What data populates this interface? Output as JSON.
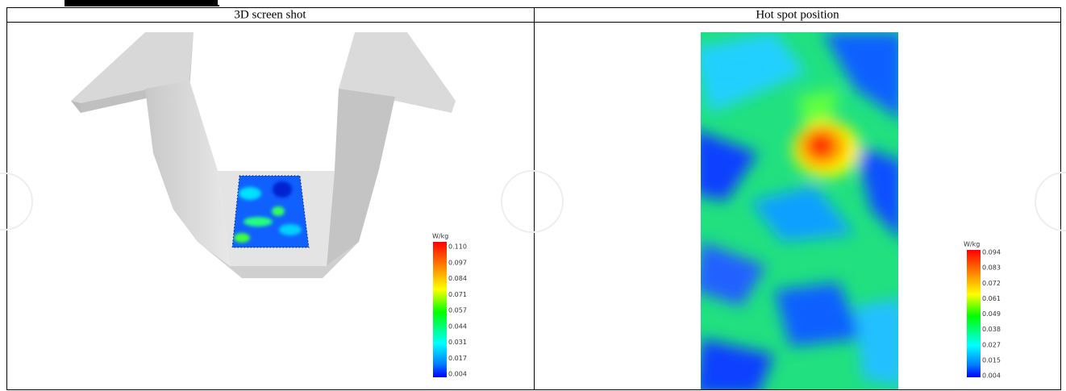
{
  "table": {
    "headers": [
      "3D screen shot",
      "Hot spot position"
    ]
  },
  "colorbars": [
    {
      "unit": "W/kg",
      "labels": [
        "0.110",
        "0.097",
        "0.084",
        "0.071",
        "0.057",
        "0.044",
        "0.031",
        "0.017",
        "0.004"
      ]
    },
    {
      "unit": "W/kg",
      "labels": [
        "0.094",
        "0.083",
        "0.072",
        "0.061",
        "0.049",
        "0.038",
        "0.027",
        "0.015",
        "0.004"
      ]
    }
  ]
}
